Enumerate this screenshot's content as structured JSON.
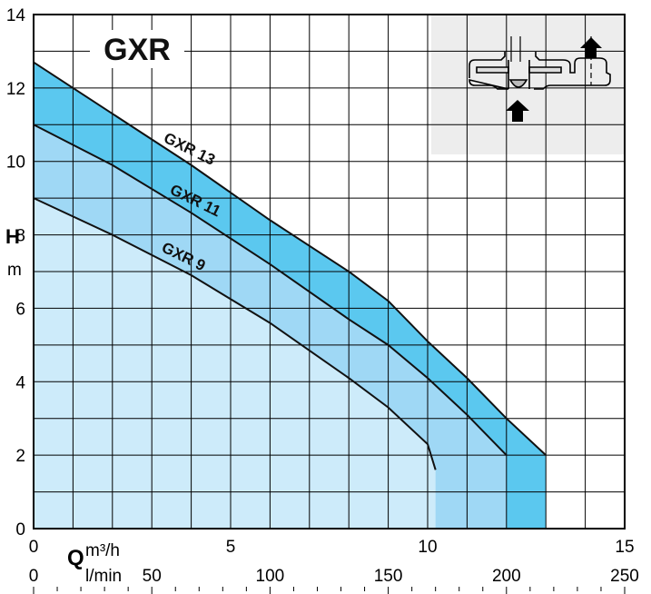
{
  "chart_data": {
    "type": "area",
    "title": "GXR",
    "ylabel": "H",
    "ylabel_unit": "m",
    "xlabel": "Q",
    "x_unit_primary": "m³/h",
    "x_unit_secondary": "l/min",
    "xlim": [
      0,
      15
    ],
    "ylim": [
      0,
      14
    ],
    "xticks": [
      0,
      5,
      10,
      15
    ],
    "yticks": [
      0,
      2,
      4,
      6,
      8,
      10,
      12,
      14
    ],
    "secondary_xticks": [
      0,
      50,
      100,
      150,
      200,
      250
    ],
    "secondary_xlim": [
      0,
      250
    ],
    "grid": true,
    "series": [
      {
        "name": "GXR 13",
        "color": "#5bc8ef",
        "x": [
          0,
          2,
          4,
          6,
          8,
          9,
          10,
          11,
          12,
          13
        ],
        "y": [
          12.7,
          11.3,
          9.9,
          8.4,
          7,
          6.2,
          5.1,
          4.1,
          3,
          2
        ]
      },
      {
        "name": "GXR 11",
        "color": "#9fd8f5",
        "x": [
          0,
          2,
          4,
          6,
          8,
          9,
          10,
          11,
          12
        ],
        "y": [
          11,
          9.9,
          8.6,
          7.2,
          5.7,
          5,
          4.1,
          3.1,
          2
        ]
      },
      {
        "name": "GXR 9",
        "color": "#cdebfa",
        "x": [
          0,
          2,
          4,
          6,
          8,
          9,
          10,
          10.2
        ],
        "y": [
          9,
          8,
          6.9,
          5.6,
          4.1,
          3.3,
          2.3,
          1.6
        ]
      }
    ]
  }
}
